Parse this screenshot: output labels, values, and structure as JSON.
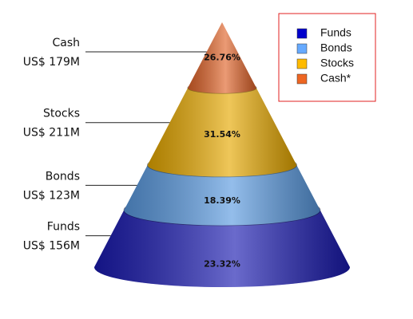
{
  "chart_data": {
    "type": "cone",
    "categories": [
      "Funds",
      "Bonds",
      "Stocks",
      "Cash"
    ],
    "values": [
      156,
      123,
      211,
      179
    ],
    "value_labels": [
      "US$ 156M",
      "US$ 123M",
      "US$ 211M",
      "US$ 179M"
    ],
    "percent_labels": [
      "23.32%",
      "18.39%",
      "31.54%",
      "26.76%"
    ],
    "colors": [
      "#1a1ab0",
      "#5a9ae0",
      "#e6a800",
      "#e0642a"
    ],
    "legend": {
      "position": "upper right",
      "names": [
        "Funds",
        "Bonds",
        "Stocks",
        "Cash*"
      ],
      "colors": [
        "#0000cc",
        "#66aaff",
        "#ffbb00",
        "#ee6622"
      ]
    }
  }
}
